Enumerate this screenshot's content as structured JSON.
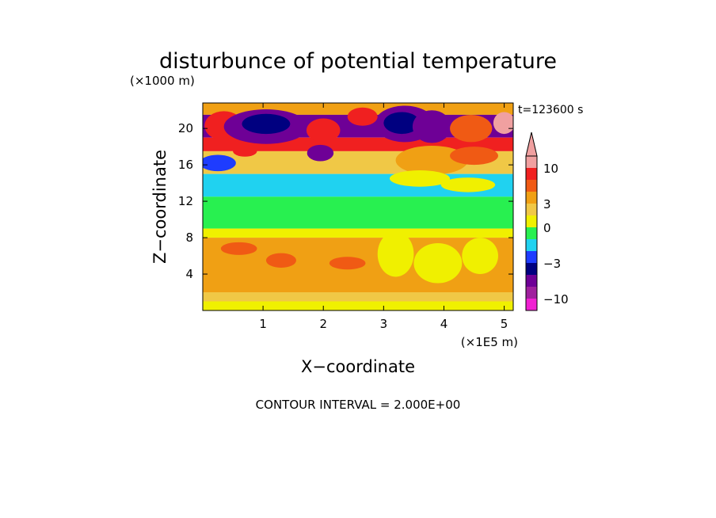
{
  "chart_data": {
    "type": "heatmap",
    "title": "disturbunce of potential temperature",
    "time_label": "t=123600 s",
    "xlabel": "X−coordinate",
    "ylabel": "Z−coordinate",
    "x_unit": "(×1E5 m)",
    "y_unit": "(×1000 m)",
    "xlim": [
      0,
      5.15
    ],
    "ylim": [
      0,
      22.8
    ],
    "x_ticks": [
      "1",
      "2",
      "3",
      "4",
      "5"
    ],
    "y_ticks": [
      "4",
      "8",
      "12",
      "16",
      "20"
    ],
    "footer": "CONTOUR INTERVAL = 2.000E+00",
    "colorbar": {
      "labels": [
        "10",
        "3",
        "0",
        "−3",
        "−10"
      ],
      "levels": [
        {
          "value": 13,
          "color": "#f0a0a0"
        },
        {
          "value": 10,
          "color": "#f0a0a0"
        },
        {
          "value": 7,
          "color": "#f02020"
        },
        {
          "value": 4,
          "color": "#f05a14"
        },
        {
          "value": 2,
          "color": "#f0a014"
        },
        {
          "value": 1,
          "color": "#f0c846"
        },
        {
          "value": 0,
          "color": "#f0f000"
        },
        {
          "value": -1,
          "color": "#28f050"
        },
        {
          "value": -2,
          "color": "#20d2f0"
        },
        {
          "value": -3,
          "color": "#1e3cff"
        },
        {
          "value": -4,
          "color": "#000080"
        },
        {
          "value": -6,
          "color": "#6e0096"
        },
        {
          "value": -10,
          "color": "#a0209e"
        },
        {
          "value": -13,
          "color": "#f020d2"
        }
      ]
    },
    "bands": [
      {
        "z": [
          21.5,
          22.8
        ],
        "value": 2
      },
      {
        "z": [
          19.0,
          21.5
        ],
        "value": -6
      },
      {
        "z": [
          17.5,
          19.0
        ],
        "value": 7
      },
      {
        "z": [
          15.0,
          17.5
        ],
        "value": 1
      },
      {
        "z": [
          12.5,
          15.0
        ],
        "value": -2
      },
      {
        "z": [
          9.0,
          12.5
        ],
        "value": -1
      },
      {
        "z": [
          8.0,
          9.0
        ],
        "value": 0
      },
      {
        "z": [
          2.0,
          8.0
        ],
        "value": 2
      },
      {
        "z": [
          1.0,
          2.0
        ],
        "value": 1
      },
      {
        "z": [
          0.0,
          1.0
        ],
        "value": 0
      }
    ],
    "anomalies": [
      {
        "x": 0.35,
        "z": 20.3,
        "rx": 0.32,
        "rz": 1.6,
        "value": 7
      },
      {
        "x": 1.05,
        "z": 20.2,
        "rx": 0.7,
        "rz": 1.9,
        "value": -6
      },
      {
        "x": 1.05,
        "z": 20.5,
        "rx": 0.4,
        "rz": 1.1,
        "value": -4
      },
      {
        "x": 2.0,
        "z": 19.8,
        "rx": 0.28,
        "rz": 1.3,
        "value": 7
      },
      {
        "x": 3.35,
        "z": 20.5,
        "rx": 0.5,
        "rz": 2.0,
        "value": -6
      },
      {
        "x": 3.3,
        "z": 20.6,
        "rx": 0.3,
        "rz": 1.2,
        "value": -4
      },
      {
        "x": 3.8,
        "z": 20.2,
        "rx": 0.32,
        "rz": 1.8,
        "value": -6
      },
      {
        "x": 2.65,
        "z": 21.3,
        "rx": 0.25,
        "rz": 1.0,
        "value": 7
      },
      {
        "x": 4.45,
        "z": 20.0,
        "rx": 0.35,
        "rz": 1.5,
        "value": 4
      },
      {
        "x": 5.0,
        "z": 20.6,
        "rx": 0.18,
        "rz": 1.2,
        "value": 10
      },
      {
        "x": 1.95,
        "z": 17.3,
        "rx": 0.22,
        "rz": 0.9,
        "value": -6
      },
      {
        "x": 0.7,
        "z": 17.5,
        "rx": 0.2,
        "rz": 0.6,
        "value": 7
      },
      {
        "x": 3.8,
        "z": 16.5,
        "rx": 0.6,
        "rz": 1.6,
        "value": 2
      },
      {
        "x": 4.5,
        "z": 17.0,
        "rx": 0.4,
        "rz": 1.0,
        "value": 4
      },
      {
        "x": 0.25,
        "z": 16.2,
        "rx": 0.3,
        "rz": 0.9,
        "value": -3
      },
      {
        "x": 3.6,
        "z": 14.5,
        "rx": 0.5,
        "rz": 0.9,
        "value": 0
      },
      {
        "x": 4.4,
        "z": 13.8,
        "rx": 0.45,
        "rz": 0.8,
        "value": 0
      },
      {
        "x": 3.2,
        "z": 6.2,
        "rx": 0.3,
        "rz": 2.5,
        "value": 0
      },
      {
        "x": 3.9,
        "z": 5.2,
        "rx": 0.4,
        "rz": 2.2,
        "value": 0
      },
      {
        "x": 4.6,
        "z": 6.0,
        "rx": 0.3,
        "rz": 2.0,
        "value": 0
      },
      {
        "x": 1.3,
        "z": 5.5,
        "rx": 0.25,
        "rz": 0.8,
        "value": 4
      },
      {
        "x": 0.6,
        "z": 6.8,
        "rx": 0.3,
        "rz": 0.7,
        "value": 4
      },
      {
        "x": 2.4,
        "z": 5.2,
        "rx": 0.3,
        "rz": 0.7,
        "value": 4
      }
    ]
  }
}
